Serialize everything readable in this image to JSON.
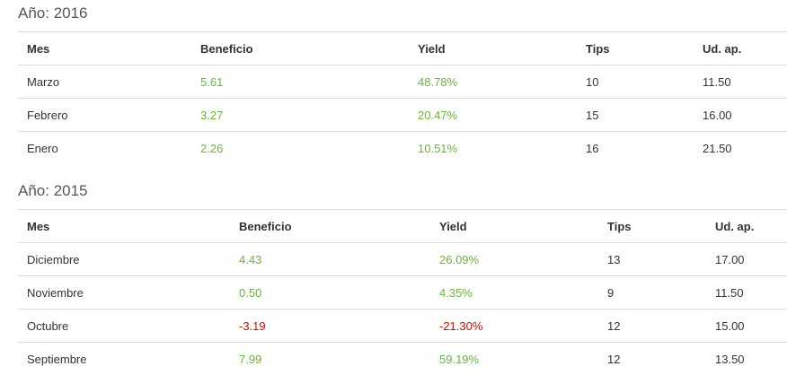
{
  "sections": [
    {
      "title": "Año: 2016",
      "table": {
        "header": [
          "Mes",
          "Beneficio",
          "Yield",
          "Tips",
          "Ud. ap."
        ],
        "rows": [
          [
            "Marzo",
            "5.61",
            "48.78%",
            "10",
            "11.50"
          ],
          [
            "Febrero",
            "3.27",
            "20.47%",
            "15",
            "16.00"
          ],
          [
            "Enero",
            "2.26",
            "10.51%",
            "16",
            "21.50"
          ]
        ]
      }
    },
    {
      "title": "Año: 2015",
      "table": {
        "header": [
          "Mes",
          "Beneficio",
          "Yield",
          "Tips",
          "Ud. ap."
        ],
        "rows": [
          [
            "Diciembre",
            "4.43",
            "26.09%",
            "13",
            "17.00"
          ],
          [
            "Noviembre",
            "0.50",
            "4.35%",
            "9",
            "11.50"
          ],
          [
            "Octubre",
            "-3.19",
            "-21.30%",
            "12",
            "15.00"
          ],
          [
            "Septiembre",
            "7.99",
            "59.19%",
            "12",
            "13.50"
          ]
        ]
      }
    }
  ]
}
